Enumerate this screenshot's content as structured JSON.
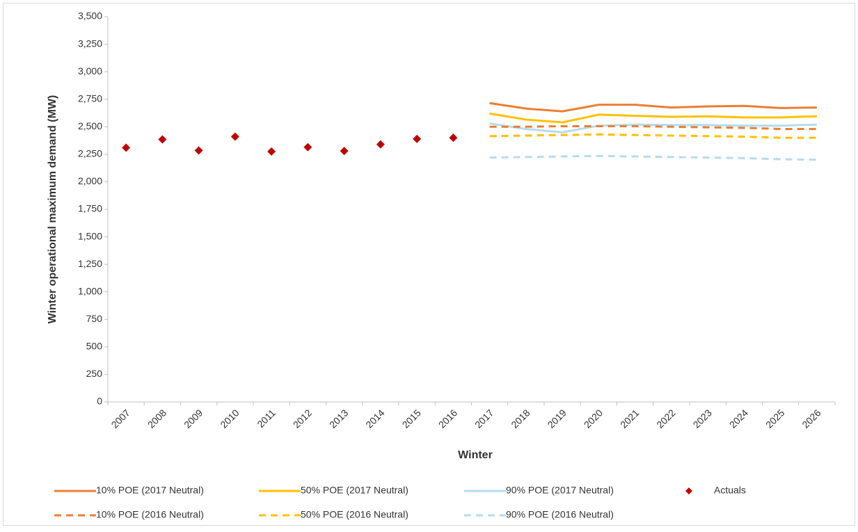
{
  "chart_data": {
    "type": "line",
    "x_label": "Winter",
    "y_label": "Winter operational maximum demand (MW)",
    "categories": [
      "2007",
      "2008",
      "2009",
      "2010",
      "2011",
      "2012",
      "2013",
      "2014",
      "2015",
      "2016",
      "2017",
      "2018",
      "2019",
      "2020",
      "2021",
      "2022",
      "2023",
      "2024",
      "2025",
      "2026"
    ],
    "ylim": [
      0,
      3500
    ],
    "yticks": [
      0,
      250,
      500,
      750,
      {
        "value": 1000,
        "label": "1,000"
      },
      {
        "value": 1250,
        "label": "1,250"
      },
      {
        "value": 1500,
        "label": "1,500"
      },
      {
        "value": 1750,
        "label": "1,750"
      },
      {
        "value": 2000,
        "label": "2,000"
      },
      {
        "value": 2250,
        "label": "2,250"
      },
      {
        "value": 2500,
        "label": "2,500"
      },
      {
        "value": 2750,
        "label": "2,750"
      },
      {
        "value": 3000,
        "label": "3,000"
      },
      {
        "value": 3250,
        "label": "3,250"
      },
      {
        "value": 3500,
        "label": "3,500"
      }
    ],
    "series": [
      {
        "name": "10% POE (2017 Neutral)",
        "color": "#ed7d31",
        "style": "solid",
        "values": [
          null,
          null,
          null,
          null,
          null,
          null,
          null,
          null,
          null,
          null,
          2715,
          2665,
          2640,
          2700,
          2700,
          2675,
          2685,
          2690,
          2670,
          2675
        ]
      },
      {
        "name": "50% POE (2017 Neutral)",
        "color": "#ffc000",
        "style": "solid",
        "values": [
          null,
          null,
          null,
          null,
          null,
          null,
          null,
          null,
          null,
          null,
          2620,
          2565,
          2540,
          2610,
          2600,
          2590,
          2595,
          2585,
          2585,
          2595
        ]
      },
      {
        "name": "90% POE (2017 Neutral)",
        "color": "#b4dcee",
        "style": "solid",
        "values": [
          null,
          null,
          null,
          null,
          null,
          null,
          null,
          null,
          null,
          null,
          2530,
          2480,
          2450,
          2510,
          2520,
          2515,
          2515,
          2510,
          2510,
          2520
        ]
      },
      {
        "name": "Actuals",
        "color": "#c00000",
        "style": "marker",
        "values": [
          2310,
          2385,
          2285,
          2410,
          2275,
          2315,
          2280,
          2340,
          2390,
          2400,
          null,
          null,
          null,
          null,
          null,
          null,
          null,
          null,
          null,
          null
        ]
      },
      {
        "name": "10% POE (2016 Neutral)",
        "color": "#ed7d31",
        "style": "dashed",
        "values": [
          null,
          null,
          null,
          null,
          null,
          null,
          null,
          null,
          null,
          null,
          2500,
          2500,
          2505,
          2505,
          2505,
          2500,
          2495,
          2490,
          2480,
          2480
        ]
      },
      {
        "name": "50% POE (2016 Neutral)",
        "color": "#ffc000",
        "style": "dashed",
        "values": [
          null,
          null,
          null,
          null,
          null,
          null,
          null,
          null,
          null,
          null,
          2415,
          2420,
          2425,
          2430,
          2425,
          2420,
          2415,
          2410,
          2400,
          2400
        ]
      },
      {
        "name": "90% POE (2016 Neutral)",
        "color": "#b4dcee",
        "style": "dashed",
        "values": [
          null,
          null,
          null,
          null,
          null,
          null,
          null,
          null,
          null,
          null,
          2220,
          2225,
          2230,
          2235,
          2230,
          2225,
          2220,
          2215,
          2205,
          2200
        ]
      }
    ]
  }
}
